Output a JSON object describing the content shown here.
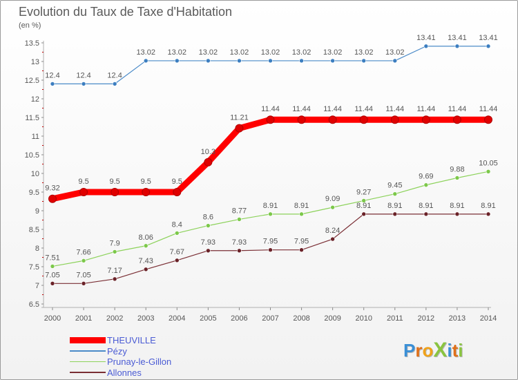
{
  "title": "Evolution du Taux de Taxe d'Habitation",
  "unit_label": "(en %)",
  "logo": {
    "text": "ProXiti",
    "letters": [
      "P",
      "r",
      "o",
      "X",
      "i",
      "t",
      "i"
    ],
    "colors": [
      "#3a8fd6",
      "#e0701a",
      "#f0a21a",
      "#8ac440",
      "#3a8fd6",
      "#e0701a",
      "#8ac440"
    ]
  },
  "chart_data": {
    "type": "line",
    "x": [
      "2000",
      "2001",
      "2002",
      "2003",
      "2004",
      "2005",
      "2006",
      "2007",
      "2008",
      "2009",
      "2010",
      "2011",
      "2012",
      "2013",
      "2014"
    ],
    "ylim": [
      6.5,
      13.5
    ],
    "yticks": [
      "6.5",
      "7",
      "7.5",
      "8",
      "8.5",
      "9",
      "9.5",
      "10",
      "10.5",
      "11",
      "11.5",
      "12",
      "12.5",
      "13",
      "13.5"
    ],
    "grid": false,
    "legend_position": "bottom-left",
    "series": [
      {
        "name": "Pézy",
        "color": "#4a8ac8",
        "marker": "#3c7ec0",
        "width": 1.2,
        "values": [
          12.4,
          12.4,
          12.4,
          13.02,
          13.02,
          13.02,
          13.02,
          13.02,
          13.02,
          13.02,
          13.02,
          13.02,
          13.41,
          13.41,
          13.41
        ],
        "labels": [
          "12.4",
          "12.4",
          "12.4",
          "13.02",
          "13.02",
          "13.02",
          "13.02",
          "13.02",
          "13.02",
          "13.02",
          "13.02",
          "13.02",
          "13.41",
          "13.41",
          "13.41"
        ]
      },
      {
        "name": "Prunay-le-Gillon",
        "color": "#8cd25a",
        "marker": "#7cc84a",
        "width": 1.2,
        "values": [
          7.51,
          7.66,
          7.9,
          8.06,
          8.4,
          8.6,
          8.77,
          8.91,
          8.91,
          9.09,
          9.27,
          9.45,
          9.69,
          9.88,
          10.05
        ],
        "labels": [
          "7.51",
          "7.66",
          "7.9",
          "8.06",
          "8.4",
          "8.6",
          "8.77",
          "8.91",
          "8.91",
          "9.09",
          "9.27",
          "9.45",
          "9.69",
          "9.88",
          "10.05"
        ]
      },
      {
        "name": "Allonnes",
        "color": "#7a2e34",
        "marker": "#6a2228",
        "width": 1.2,
        "values": [
          7.05,
          7.05,
          7.17,
          7.43,
          7.67,
          7.93,
          7.93,
          7.95,
          7.95,
          8.24,
          8.91,
          8.91,
          8.91,
          8.91,
          8.91
        ],
        "labels": [
          "7.05",
          "7.05",
          "7.17",
          "7.43",
          "7.67",
          "7.93",
          "7.93",
          "7.95",
          "7.95",
          "8.24",
          "8.91",
          "8.91",
          "8.91",
          "8.91",
          "8.91"
        ]
      },
      {
        "name": "THEUVILLE",
        "color": "#ff0000",
        "marker": "#e00000",
        "width": 9,
        "values": [
          9.32,
          9.5,
          9.5,
          9.5,
          9.5,
          10.3,
          11.21,
          11.44,
          11.44,
          11.44,
          11.44,
          11.44,
          11.44,
          11.44,
          11.44
        ],
        "labels": [
          "9.32",
          "9.5",
          "9.5",
          "9.5",
          "9.5",
          "10.3",
          "11.21",
          "11.44",
          "11.44",
          "11.44",
          "11.44",
          "11.44",
          "11.44",
          "11.44",
          "11.44"
        ]
      }
    ],
    "legend": [
      {
        "name": "THEUVILLE",
        "color": "#ff0000",
        "width": 9
      },
      {
        "name": "Pézy",
        "color": "#4a8ac8",
        "width": 1.5
      },
      {
        "name": "Prunay-le-Gillon",
        "color": "#8cd25a",
        "width": 1.5
      },
      {
        "name": "Allonnes",
        "color": "#7a2e34",
        "width": 1.5
      }
    ]
  }
}
